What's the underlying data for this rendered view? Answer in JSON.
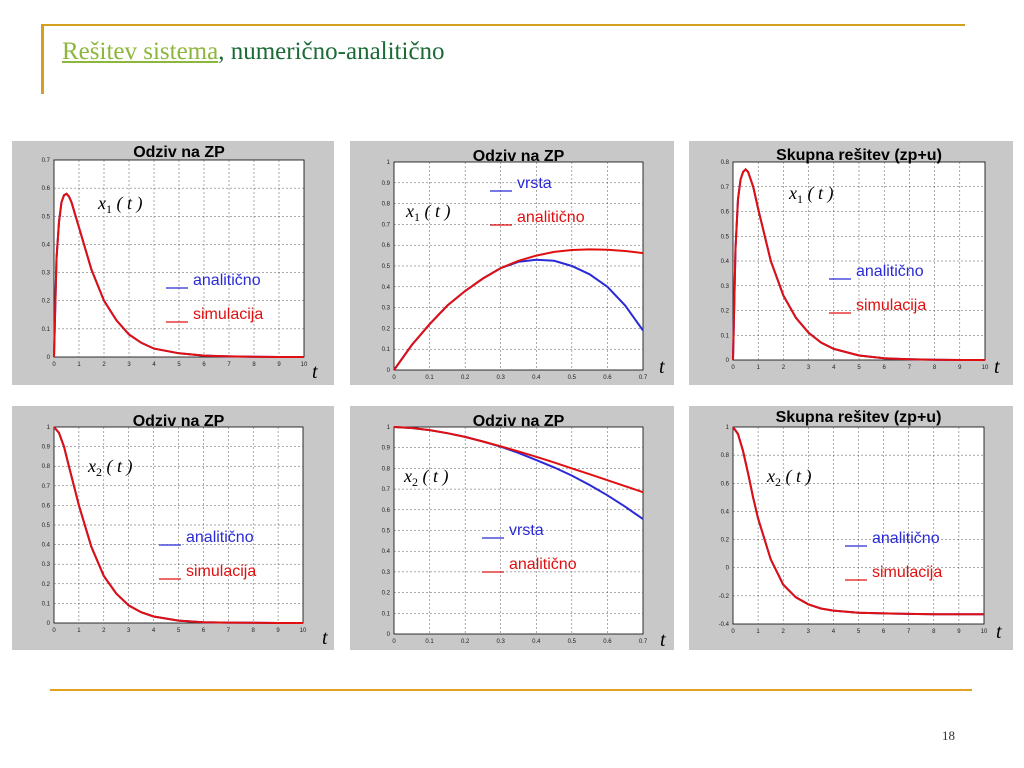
{
  "slide": {
    "title_link": "Rešitev sistema",
    "title_rest": ", numerično-analitično",
    "page_number": "18"
  },
  "colors": {
    "blue": "#2a2ad6",
    "red": "#e01010"
  },
  "chart_data": [
    {
      "type": "line",
      "title": "Odziv na ZP",
      "variable": "x1(t)",
      "xlabel": "t",
      "xlim": [
        0,
        10
      ],
      "ylim": [
        0,
        0.7
      ],
      "xticks": [
        "0",
        "1",
        "2",
        "3",
        "4",
        "5",
        "6",
        "7",
        "8",
        "9",
        "10"
      ],
      "yticks": [
        "0",
        "0.1",
        "0.2",
        "0.3",
        "0.4",
        "0.5",
        "0.6",
        "0.7"
      ],
      "grid": true,
      "legend": [
        {
          "name": "analitično",
          "color": "blue"
        },
        {
          "name": "simulacija",
          "color": "red"
        }
      ],
      "series": [
        {
          "name": "analitično",
          "color": "blue",
          "x": [
            0,
            0.1,
            0.2,
            0.3,
            0.4,
            0.5,
            0.6,
            0.7,
            0.8,
            1,
            1.5,
            2,
            2.5,
            3,
            3.5,
            4,
            5,
            6,
            7,
            8,
            9,
            10
          ],
          "y": [
            0,
            0.35,
            0.48,
            0.55,
            0.575,
            0.58,
            0.57,
            0.55,
            0.52,
            0.46,
            0.31,
            0.2,
            0.13,
            0.08,
            0.05,
            0.03,
            0.013,
            0.005,
            0.002,
            0.001,
            0,
            0
          ]
        },
        {
          "name": "simulacija",
          "color": "red",
          "x": [
            0,
            0.1,
            0.2,
            0.3,
            0.4,
            0.5,
            0.6,
            0.7,
            0.8,
            1,
            1.5,
            2,
            2.5,
            3,
            3.5,
            4,
            5,
            6,
            7,
            8,
            9,
            10
          ],
          "y": [
            0,
            0.35,
            0.48,
            0.55,
            0.575,
            0.58,
            0.57,
            0.55,
            0.52,
            0.46,
            0.31,
            0.2,
            0.13,
            0.08,
            0.05,
            0.03,
            0.013,
            0.005,
            0.002,
            0.001,
            0,
            0
          ]
        }
      ]
    },
    {
      "type": "line",
      "title": "Odziv na ZP",
      "variable": "x1(t)",
      "xlabel": "t",
      "xlim": [
        0,
        0.7
      ],
      "ylim": [
        0,
        1
      ],
      "xticks": [
        "0",
        "0.1",
        "0.2",
        "0.3",
        "0.4",
        "0.5",
        "0.6",
        "0.7"
      ],
      "yticks": [
        "0",
        "0.1",
        "0.2",
        "0.3",
        "0.4",
        "0.5",
        "0.6",
        "0.7",
        "0.8",
        "0.9",
        "1"
      ],
      "grid": true,
      "legend": [
        {
          "name": "vrsta",
          "color": "blue"
        },
        {
          "name": "analitično",
          "color": "red"
        }
      ],
      "series": [
        {
          "name": "vrsta",
          "color": "blue",
          "x": [
            0,
            0.05,
            0.1,
            0.15,
            0.2,
            0.25,
            0.3,
            0.35,
            0.4,
            0.45,
            0.5,
            0.55,
            0.6,
            0.65,
            0.7
          ],
          "y": [
            0,
            0.12,
            0.22,
            0.31,
            0.38,
            0.44,
            0.49,
            0.52,
            0.53,
            0.525,
            0.5,
            0.46,
            0.4,
            0.31,
            0.19
          ]
        },
        {
          "name": "analitično",
          "color": "red",
          "x": [
            0,
            0.05,
            0.1,
            0.15,
            0.2,
            0.25,
            0.3,
            0.35,
            0.4,
            0.45,
            0.5,
            0.55,
            0.6,
            0.65,
            0.7
          ],
          "y": [
            0,
            0.12,
            0.22,
            0.31,
            0.38,
            0.44,
            0.49,
            0.525,
            0.55,
            0.568,
            0.577,
            0.58,
            0.578,
            0.572,
            0.562
          ]
        }
      ]
    },
    {
      "type": "line",
      "title": "Skupna rešitev (zp+u)",
      "variable": "x1(t)",
      "xlabel": "t",
      "xlim": [
        0,
        10
      ],
      "ylim": [
        0,
        0.8
      ],
      "xticks": [
        "0",
        "1",
        "2",
        "3",
        "4",
        "5",
        "6",
        "7",
        "8",
        "9",
        "10"
      ],
      "yticks": [
        "0",
        "0.1",
        "0.2",
        "0.3",
        "0.4",
        "0.5",
        "0.6",
        "0.7",
        "0.8"
      ],
      "grid": true,
      "legend": [
        {
          "name": "analitično",
          "color": "blue"
        },
        {
          "name": "simulacija",
          "color": "red"
        }
      ],
      "series": [
        {
          "name": "analitično",
          "color": "blue",
          "x": [
            0,
            0.1,
            0.2,
            0.3,
            0.4,
            0.5,
            0.6,
            0.8,
            1,
            1.5,
            2,
            2.5,
            3,
            3.5,
            4,
            5,
            6,
            7,
            8,
            9,
            10
          ],
          "y": [
            0,
            0.45,
            0.65,
            0.73,
            0.76,
            0.77,
            0.76,
            0.7,
            0.61,
            0.4,
            0.26,
            0.17,
            0.11,
            0.07,
            0.045,
            0.018,
            0.007,
            0.003,
            0.001,
            0,
            0
          ]
        },
        {
          "name": "simulacija",
          "color": "red",
          "x": [
            0,
            0.1,
            0.2,
            0.3,
            0.4,
            0.5,
            0.6,
            0.8,
            1,
            1.5,
            2,
            2.5,
            3,
            3.5,
            4,
            5,
            6,
            7,
            8,
            9,
            10
          ],
          "y": [
            0,
            0.45,
            0.65,
            0.73,
            0.76,
            0.77,
            0.76,
            0.7,
            0.61,
            0.4,
            0.26,
            0.17,
            0.11,
            0.07,
            0.045,
            0.018,
            0.007,
            0.003,
            0.001,
            0,
            0
          ]
        }
      ]
    },
    {
      "type": "line",
      "title": "Odziv na ZP",
      "variable": "x2(t)",
      "xlabel": "t",
      "xlim": [
        0,
        10
      ],
      "ylim": [
        0,
        1
      ],
      "xticks": [
        "0",
        "1",
        "2",
        "3",
        "4",
        "5",
        "6",
        "7",
        "8",
        "9",
        "10"
      ],
      "yticks": [
        "0",
        "0.1",
        "0.2",
        "0.3",
        "0.4",
        "0.5",
        "0.6",
        "0.7",
        "0.8",
        "0.9",
        "1"
      ],
      "grid": true,
      "legend": [
        {
          "name": "analitično",
          "color": "blue"
        },
        {
          "name": "simulacija",
          "color": "red"
        }
      ],
      "series": [
        {
          "name": "analitično",
          "color": "blue",
          "x": [
            0,
            0.2,
            0.4,
            0.6,
            0.8,
            1,
            1.5,
            2,
            2.5,
            3,
            3.5,
            4,
            5,
            6,
            7,
            8,
            9,
            10
          ],
          "y": [
            1,
            0.97,
            0.9,
            0.8,
            0.7,
            0.6,
            0.39,
            0.24,
            0.15,
            0.09,
            0.055,
            0.033,
            0.012,
            0.004,
            0.002,
            0.001,
            0,
            0
          ]
        },
        {
          "name": "simulacija",
          "color": "red",
          "x": [
            0,
            0.2,
            0.4,
            0.6,
            0.8,
            1,
            1.5,
            2,
            2.5,
            3,
            3.5,
            4,
            5,
            6,
            7,
            8,
            9,
            10
          ],
          "y": [
            1,
            0.97,
            0.9,
            0.8,
            0.7,
            0.6,
            0.39,
            0.24,
            0.15,
            0.09,
            0.055,
            0.033,
            0.012,
            0.004,
            0.002,
            0.001,
            0,
            0
          ]
        }
      ]
    },
    {
      "type": "line",
      "title": "Odziv na ZP",
      "variable": "x2(t)",
      "xlabel": "t",
      "xlim": [
        0,
        0.7
      ],
      "ylim": [
        0,
        1
      ],
      "xticks": [
        "0",
        "0.1",
        "0.2",
        "0.3",
        "0.4",
        "0.5",
        "0.6",
        "0.7"
      ],
      "yticks": [
        "0",
        "0.1",
        "0.2",
        "0.3",
        "0.4",
        "0.5",
        "0.6",
        "0.7",
        "0.8",
        "0.9",
        "1"
      ],
      "grid": true,
      "legend": [
        {
          "name": "vrsta",
          "color": "blue"
        },
        {
          "name": "analitično",
          "color": "red"
        }
      ],
      "series": [
        {
          "name": "vrsta",
          "color": "blue",
          "x": [
            0,
            0.05,
            0.1,
            0.15,
            0.2,
            0.25,
            0.3,
            0.35,
            0.4,
            0.45,
            0.5,
            0.55,
            0.6,
            0.65,
            0.7
          ],
          "y": [
            1,
            0.995,
            0.985,
            0.97,
            0.952,
            0.93,
            0.905,
            0.875,
            0.84,
            0.805,
            0.765,
            0.72,
            0.67,
            0.615,
            0.555
          ]
        },
        {
          "name": "analitično",
          "color": "red",
          "x": [
            0,
            0.05,
            0.1,
            0.15,
            0.2,
            0.25,
            0.3,
            0.35,
            0.4,
            0.45,
            0.5,
            0.55,
            0.6,
            0.65,
            0.7
          ],
          "y": [
            1,
            0.995,
            0.985,
            0.97,
            0.952,
            0.93,
            0.907,
            0.882,
            0.856,
            0.829,
            0.8,
            0.772,
            0.743,
            0.714,
            0.685
          ]
        }
      ]
    },
    {
      "type": "line",
      "title": "Skupna rešitev (zp+u)",
      "variable": "x2(t)",
      "xlabel": "t",
      "xlim": [
        0,
        10
      ],
      "ylim": [
        -0.4,
        1
      ],
      "xticks": [
        "0",
        "1",
        "2",
        "3",
        "4",
        "5",
        "6",
        "7",
        "8",
        "9",
        "10"
      ],
      "yticks": [
        "-0.4",
        "-0.2",
        "0",
        "0.2",
        "0.4",
        "0.6",
        "0.8",
        "1"
      ],
      "grid": true,
      "legend": [
        {
          "name": "analitično",
          "color": "blue"
        },
        {
          "name": "simulacija",
          "color": "red"
        }
      ],
      "series": [
        {
          "name": "analitično",
          "color": "blue",
          "x": [
            0,
            0.2,
            0.4,
            0.6,
            0.8,
            1,
            1.5,
            2,
            2.5,
            3,
            3.5,
            4,
            5,
            6,
            7,
            8,
            9,
            10
          ],
          "y": [
            1,
            0.95,
            0.83,
            0.67,
            0.5,
            0.35,
            0.06,
            -0.12,
            -0.21,
            -0.26,
            -0.29,
            -0.305,
            -0.32,
            -0.325,
            -0.328,
            -0.33,
            -0.33,
            -0.33
          ]
        },
        {
          "name": "simulacija",
          "color": "red",
          "x": [
            0,
            0.2,
            0.4,
            0.6,
            0.8,
            1,
            1.5,
            2,
            2.5,
            3,
            3.5,
            4,
            5,
            6,
            7,
            8,
            9,
            10
          ],
          "y": [
            1,
            0.95,
            0.83,
            0.67,
            0.5,
            0.35,
            0.06,
            -0.12,
            -0.21,
            -0.26,
            -0.29,
            -0.305,
            -0.32,
            -0.325,
            -0.328,
            -0.33,
            -0.33,
            -0.33
          ]
        }
      ]
    }
  ]
}
